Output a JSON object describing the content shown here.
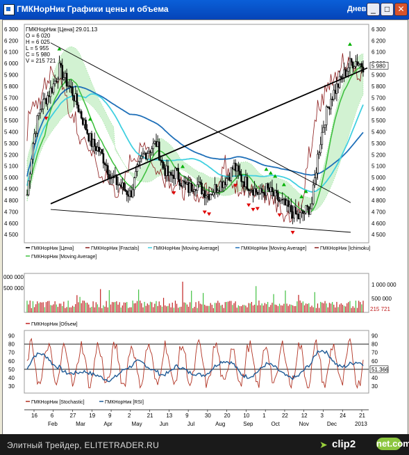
{
  "window": {
    "title": "ГМКНорНик Графики цены и объема",
    "period": "Дневной",
    "minimize": "_",
    "maximize": "□",
    "close": "✕"
  },
  "ohlc_info": [
    "ГМКНорНик [Цена] 29.01.13",
    "O = 6 020",
    "H = 6 025",
    "L = 5 955",
    "C = 5 980",
    "V = 215 721"
  ],
  "colors": {
    "price": "#000000",
    "fractal_up": "#00b000",
    "fractal_down": "#e00000",
    "ma_light": "#40d0e0",
    "ma_dark": "#1e6fb8",
    "ichimoku": "#8b1a1a",
    "ma_green": "#40c040",
    "cloud": "#5fcf5f",
    "volume": "#c02020",
    "stochastic": "#b03020",
    "rsi": "#1e5a96"
  },
  "legend_price": [
    "ГМКНорНик [Цена]",
    "ГМКНорНик [Fractals]",
    "ГМКНорНик [Moving Average]",
    "ГМКНорНик [Moving Average]",
    "ГМКНорНик [Ichimoku]",
    "ГМКНорНик [Moving Average]"
  ],
  "legend_volume": [
    "ГМКНорНик [Объем]"
  ],
  "legend_osc": [
    "ГМКНорНик [Stochastic]",
    "ГМКНорНик [RSI]"
  ],
  "status": {
    "site": "Элитный Трейдер, ELITETRADER.RU",
    "logo_clip": "clip2",
    "logo_net": "net.com"
  },
  "chart_data": [
    {
      "type": "candlestick",
      "panel": "price",
      "yticks": [
        4500,
        4600,
        4700,
        4800,
        4900,
        5000,
        5100,
        5200,
        5300,
        5400,
        5500,
        5600,
        5700,
        5800,
        5900,
        6000,
        6100,
        6200,
        6300
      ],
      "ylim": [
        4440,
        6330
      ],
      "price_label": "5 980",
      "x_day_ticks": [
        "16",
        "6",
        "27",
        "19",
        "9",
        "2",
        "21",
        "13",
        "9",
        "30",
        "20",
        "10",
        "1",
        "22",
        "12",
        "3",
        "24",
        "21"
      ],
      "x_month_labels": [
        "Feb",
        "Mar",
        "Apr",
        "May",
        "Jun",
        "Jul",
        "Aug",
        "Sep",
        "Oct",
        "Nov",
        "Dec",
        "2013"
      ],
      "trendlines": [
        {
          "name": "support-rising",
          "from": [
            4770,
            "Feb"
          ],
          "to": [
            5960,
            "2013"
          ]
        },
        {
          "name": "resistance-falling",
          "from": [
            6180,
            "Feb"
          ],
          "to": [
            4780,
            "Dec"
          ]
        },
        {
          "name": "lower-support",
          "from": [
            4720,
            "Feb"
          ],
          "to": [
            4520,
            "Dec"
          ]
        }
      ],
      "close_path": [
        4850,
        5350,
        5600,
        5700,
        5800,
        5950,
        5850,
        5750,
        5600,
        5450,
        5300,
        5250,
        5150,
        5000,
        4950,
        4900,
        4850,
        5050,
        5200,
        5250,
        5300,
        5100,
        5000,
        5050,
        4950,
        4900,
        4950,
        4900,
        4850,
        4900,
        4950,
        5000,
        5100,
        5000,
        4950,
        4900,
        4850,
        4900,
        4850,
        4800,
        4750,
        4700,
        4650,
        4700,
        4750,
        5200,
        5500,
        5700,
        5800,
        5900,
        6000,
        6020,
        5980
      ]
    },
    {
      "type": "bar",
      "panel": "volume",
      "yticks": [
        500000,
        1000000
      ],
      "ytick_labels": [
        "500 000",
        "1 000 000"
      ],
      "left_labels": [
        "000 000",
        "500 000"
      ],
      "last_value_label": "215 721",
      "ylim": [
        0,
        1300000
      ]
    },
    {
      "type": "line",
      "panel": "oscillators",
      "yticks": [
        30,
        40,
        50,
        60,
        70,
        80,
        90
      ],
      "ylim": [
        25,
        93
      ],
      "levels": [
        80,
        50
      ],
      "last_value_label": "51.366"
    }
  ]
}
